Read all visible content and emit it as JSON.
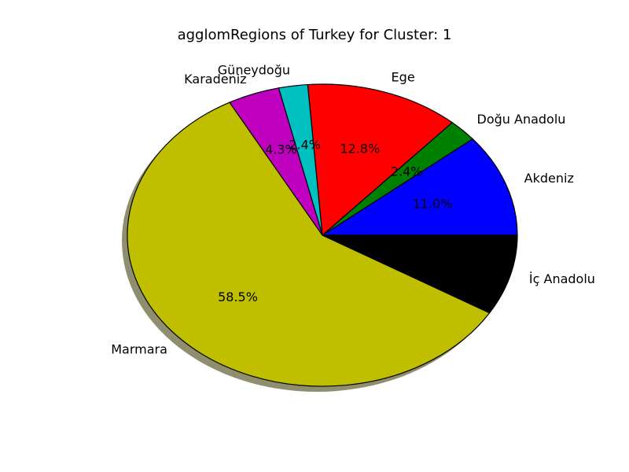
{
  "chart_data": {
    "type": "pie",
    "title": "agglomRegions of Turkey for Cluster: 1",
    "shadow": true,
    "slices": [
      {
        "label": "Akdeniz",
        "value": 11.0,
        "pct_label": "11.0%",
        "color": "#0000ff"
      },
      {
        "label": "Doğu Anadolu",
        "value": 2.4,
        "pct_label": "2.4%",
        "color": "#008000"
      },
      {
        "label": "Ege",
        "value": 12.8,
        "pct_label": "12.8%",
        "color": "#ff0000"
      },
      {
        "label": "Güneydoğu",
        "value": 2.4,
        "pct_label": "2.4%",
        "color": "#00bfbf"
      },
      {
        "label": "Karadeniz",
        "value": 4.3,
        "pct_label": "4.3%",
        "color": "#bf00bf"
      },
      {
        "label": "Marmara",
        "value": 58.5,
        "pct_label": "58.5%",
        "color": "#bfbf00"
      },
      {
        "label": "İç Anadolu",
        "value": 8.6,
        "pct_label": "",
        "color": "#000000"
      }
    ]
  }
}
